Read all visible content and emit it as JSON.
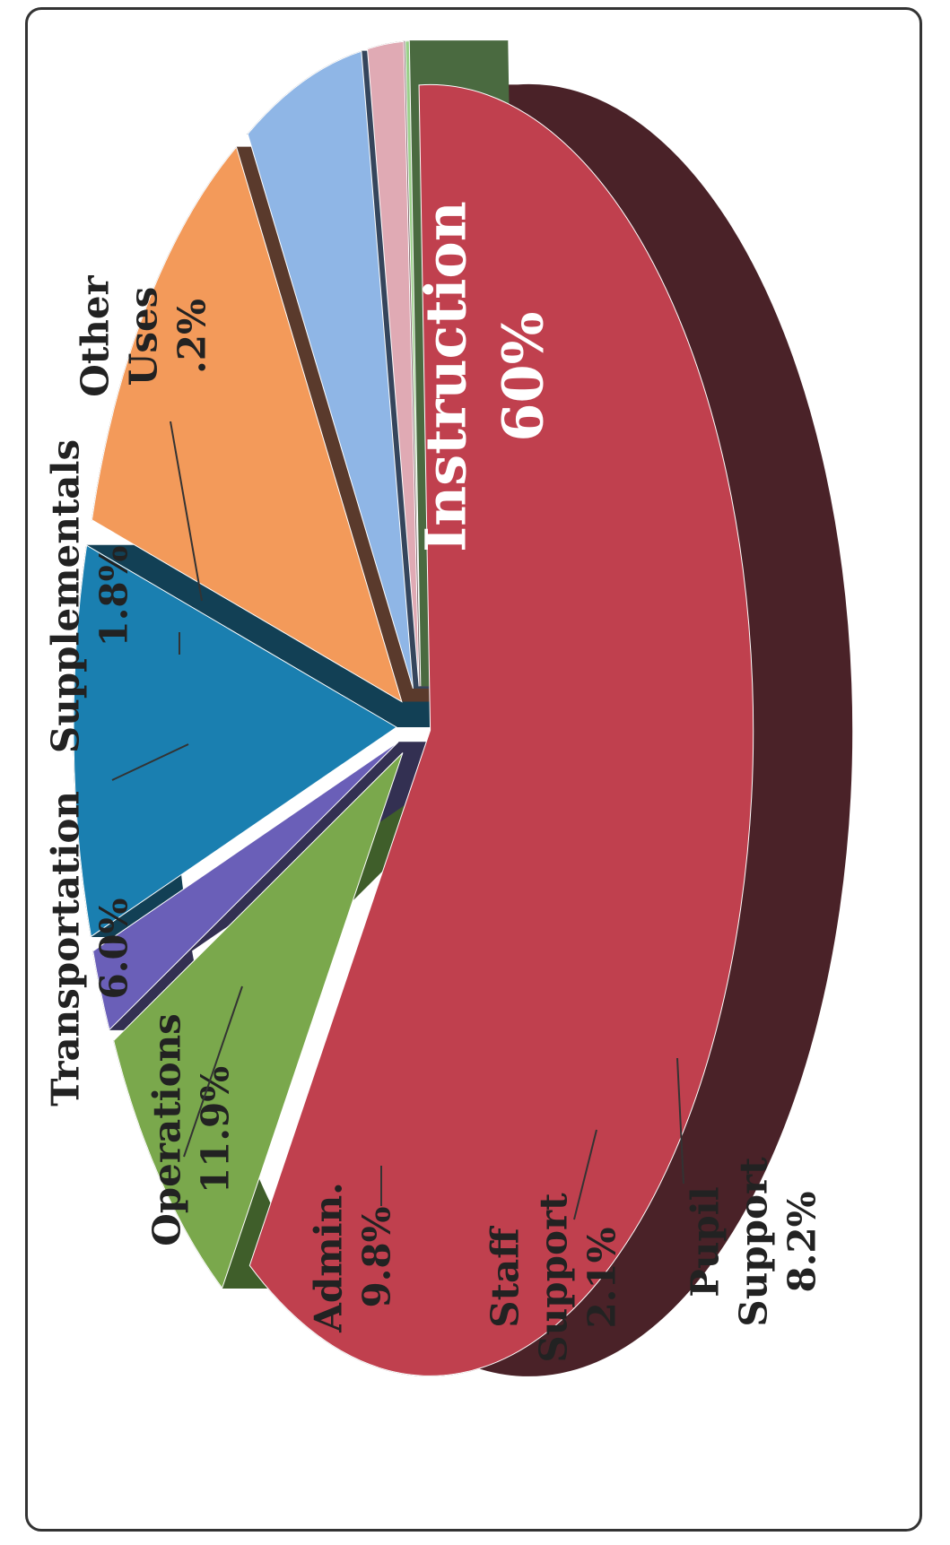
{
  "chart_data": {
    "type": "pie",
    "title": "",
    "slices": [
      {
        "key": "instruction",
        "label_lines": [
          "Instruction",
          "60%"
        ],
        "value": 60.0,
        "color": "#c0404e",
        "side": "#4a2228"
      },
      {
        "key": "pupil_support",
        "label_lines": [
          "Pupil",
          "Support",
          "8.2%"
        ],
        "value": 8.2,
        "color": "#7aa84c",
        "side": "#3f5e2a"
      },
      {
        "key": "staff_support",
        "label_lines": [
          "Staff",
          "Support",
          "2.1%"
        ],
        "value": 2.1,
        "color": "#6a5fb8",
        "side": "#333052"
      },
      {
        "key": "admin",
        "label_lines": [
          "Admin.",
          "9.8%"
        ],
        "value": 9.8,
        "color": "#1a7fb0",
        "side": "#124055"
      },
      {
        "key": "operations",
        "label_lines": [
          "Operations",
          "11.9%"
        ],
        "value": 11.9,
        "color": "#f39a5a",
        "side": "#5a3a2c"
      },
      {
        "key": "transportation",
        "label_lines": [
          "Transportation",
          "6.0%"
        ],
        "value": 6.0,
        "color": "#8fb6e6",
        "side": "#35455c"
      },
      {
        "key": "supplementals",
        "label_lines": [
          "Supplementals",
          "1.8%"
        ],
        "value": 1.8,
        "color": "#e0aab4",
        "side": "#6a4a50"
      },
      {
        "key": "other_uses",
        "label_lines": [
          "Other",
          "Uses",
          ".2%"
        ],
        "value": 0.2,
        "color": "#9ad08a",
        "side": "#4a6a40"
      }
    ],
    "style": "3d-exploded",
    "orientation": "rotated"
  }
}
